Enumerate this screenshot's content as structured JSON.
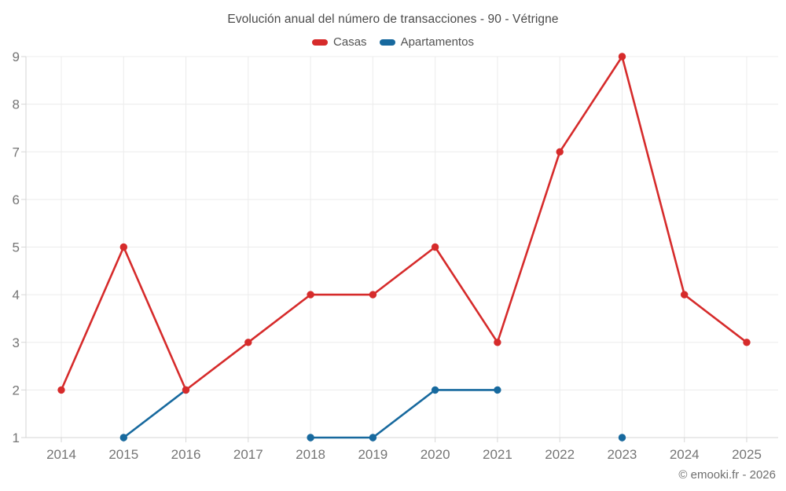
{
  "header": {
    "title": "Evolución anual del número de transacciones - 90 - Vétrigne"
  },
  "footer": {
    "credit": "© emooki.fr - 2026"
  },
  "chart_data": {
    "type": "line",
    "title": "Evolución anual del número de transacciones - 90 - Vétrigne",
    "x": [
      2014,
      2015,
      2016,
      2017,
      2018,
      2019,
      2020,
      2021,
      2022,
      2023,
      2024,
      2025
    ],
    "series": [
      {
        "name": "Casas",
        "color": "#d62b2b",
        "values": [
          2,
          5,
          2,
          3,
          4,
          4,
          5,
          3,
          7,
          9,
          4,
          3
        ]
      },
      {
        "name": "Apartamentos",
        "color": "#17699e",
        "values": [
          null,
          1,
          2,
          null,
          1,
          1,
          2,
          2,
          null,
          1,
          null,
          null
        ]
      }
    ],
    "xlabel": "",
    "ylabel": "",
    "ylim": [
      1,
      9
    ],
    "yticks": [
      1,
      2,
      3,
      4,
      5,
      6,
      7,
      8,
      9
    ],
    "grid": true,
    "legend_position": "top"
  }
}
